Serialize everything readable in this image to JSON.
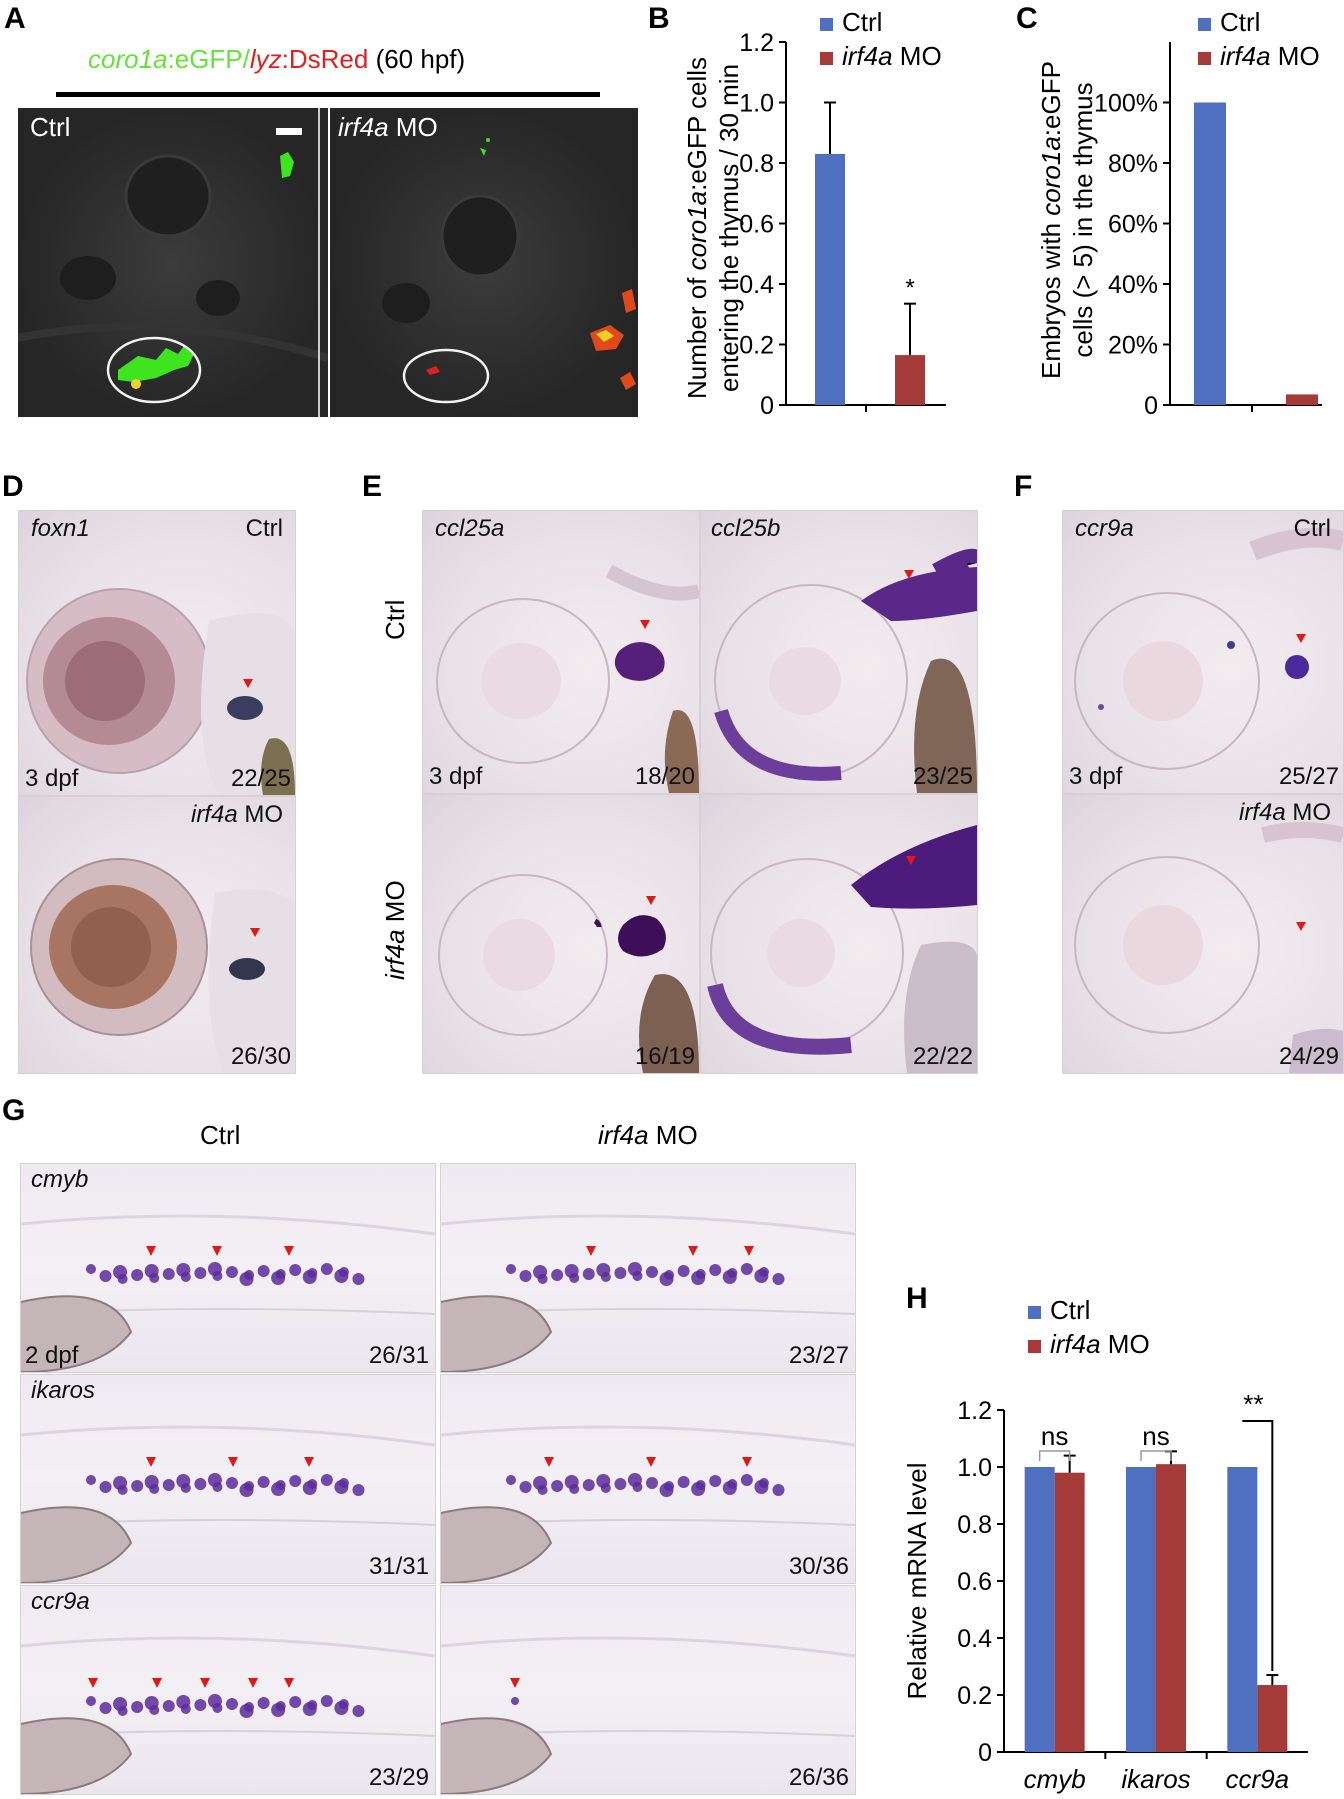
{
  "panels": {
    "A": {
      "letter": "A",
      "title": {
        "part1": "coro1a",
        "part2": ":eGFP/",
        "part3": "lyz",
        "part4": ":DsRed",
        "part5": " (60 hpf)"
      },
      "left_label": "Ctrl",
      "right_label_italic": "irf4a",
      "right_label_rest": " MO",
      "colors": {
        "green": "#5ee83a",
        "red": "#e02020",
        "dark": "#2a2a2a"
      }
    },
    "B": {
      "letter": "B"
    },
    "C": {
      "letter": "C"
    },
    "D": {
      "letter": "D",
      "top": {
        "gene": "foxn1",
        "cond": "Ctrl",
        "stage": "3 dpf",
        "count": "22/25"
      },
      "bottom": {
        "cond_italic": "irf4a",
        "cond_rest": " MO",
        "count": "26/30"
      }
    },
    "E": {
      "letter": "E",
      "genes": [
        "ccl25a",
        "ccl25b"
      ],
      "row_labels": {
        "ctrl": "Ctrl",
        "mo_italic": "irf4a",
        "mo_rest": " MO"
      },
      "stage": "3 dpf",
      "counts": {
        "ctrl_a": "18/20",
        "ctrl_b": "23/25",
        "mo_a": "16/19",
        "mo_b": "22/22"
      }
    },
    "F": {
      "letter": "F",
      "top": {
        "gene": "ccr9a",
        "cond": "Ctrl",
        "stage": "3 dpf",
        "count": "25/27"
      },
      "bottom": {
        "cond_italic": "irf4a",
        "cond_rest": " MO",
        "count": "24/29"
      }
    },
    "G": {
      "letter": "G",
      "col_ctrl": "Ctrl",
      "col_mo_italic": "irf4a",
      "col_mo_rest": " MO",
      "stage": "2 dpf",
      "rows": [
        {
          "gene": "cmyb",
          "ctrl_count": "26/31",
          "mo_count": "23/27"
        },
        {
          "gene": "ikaros",
          "ctrl_count": "31/31",
          "mo_count": "30/36"
        },
        {
          "gene": "ccr9a",
          "ctrl_count": "23/29",
          "mo_count": "26/36"
        }
      ]
    },
    "H": {
      "letter": "H"
    }
  },
  "chart_data": [
    {
      "panel": "B",
      "type": "bar",
      "categories": [
        "Ctrl",
        "irf4a MO"
      ],
      "values": [
        0.83,
        0.165
      ],
      "errors": [
        0.17,
        0.17
      ],
      "colors": [
        "#4f6fbf",
        "#a53b39"
      ],
      "ylabel_italic": "coro1a",
      "ylabel_line1_pre": "Number of ",
      "ylabel_line1_post": ":eGFP cells",
      "ylabel_line2": "entering the thymus / 30 min",
      "ylim": [
        0,
        1.2
      ],
      "yticks": [
        "0",
        "0.2",
        "0.4",
        "0.6",
        "0.8",
        "1.0",
        "1.2"
      ],
      "annotation": "*",
      "legend": [
        {
          "name": "Ctrl"
        },
        {
          "name_italic": "irf4a",
          "name_rest": " MO"
        }
      ],
      "legend_position": "top-right"
    },
    {
      "panel": "C",
      "type": "bar",
      "categories": [
        "Ctrl",
        "irf4a MO"
      ],
      "values": [
        100,
        3.5
      ],
      "colors": [
        "#4f6fbf",
        "#a53b39"
      ],
      "ylabel_line1": "Embryos with coro1a:eGFP",
      "ylabel_italic": "coro1a",
      "ylabel_line1_pre": "Embryos with ",
      "ylabel_line1_post": ":eGFP",
      "ylabel_line2": "cells (> 5) in the thymus",
      "ylim": [
        0,
        120
      ],
      "yticks": [
        "0",
        "20%",
        "40%",
        "60%",
        "80%",
        "100%"
      ],
      "legend": [
        {
          "name": "Ctrl"
        },
        {
          "name_italic": "irf4a",
          "name_rest": " MO"
        }
      ],
      "legend_position": "top-right"
    },
    {
      "panel": "H",
      "type": "bar",
      "categories": [
        "cmyb",
        "ikaros",
        "ccr9a"
      ],
      "series": [
        {
          "name": "Ctrl",
          "values": [
            1.0,
            1.0,
            1.0
          ],
          "errors": [
            0,
            0,
            0
          ],
          "color": "#4f6fbf"
        },
        {
          "name": "irf4a MO",
          "values": [
            0.98,
            1.01,
            0.235
          ],
          "errors": [
            0.06,
            0.045,
            0.035
          ],
          "color": "#a53b39"
        }
      ],
      "ylabel": "Relative mRNA level",
      "ylim": [
        0,
        1.2
      ],
      "yticks": [
        "0",
        "0.2",
        "0.4",
        "0.6",
        "0.8",
        "1.0",
        "1.2"
      ],
      "significance": [
        "ns",
        "ns",
        "**"
      ],
      "legend": [
        {
          "name": "Ctrl"
        },
        {
          "name_italic": "irf4a",
          "name_rest": " MO"
        }
      ],
      "legend_position": "top-left"
    }
  ]
}
